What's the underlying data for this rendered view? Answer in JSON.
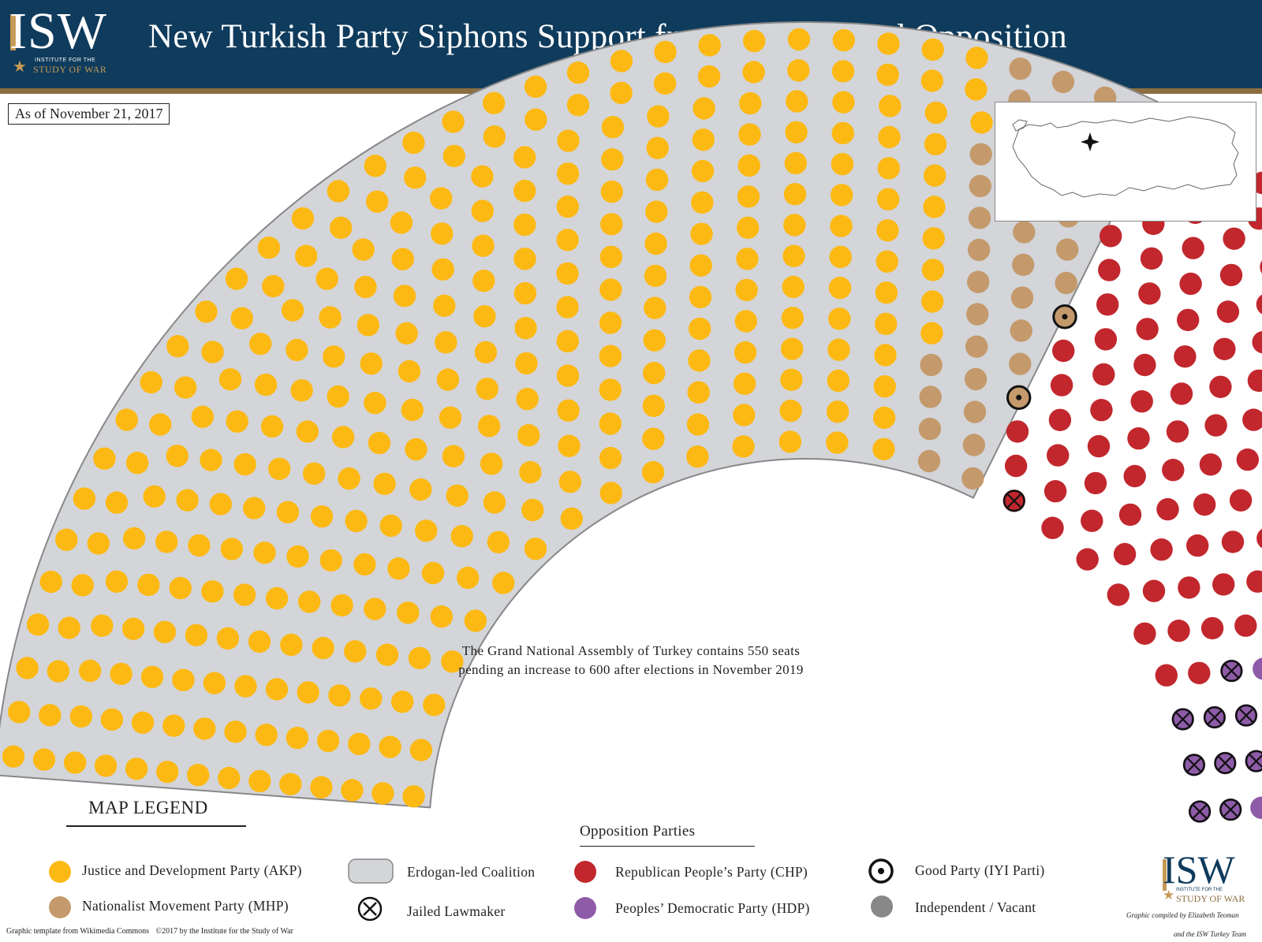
{
  "header": {
    "title": "New Turkish Party Siphons Support from Erdogan and Opposition",
    "logo": {
      "name": "ISW",
      "line1": "INSTITUTE FOR THE",
      "line2": "STUDY OF WAR"
    }
  },
  "date_label": "As of November 21, 2017",
  "note": {
    "line1": "The Grand National Assembly of Turkey contains 550 seats",
    "line2": "pending an increase to 600 after elections in November 2019"
  },
  "legend": {
    "title": "MAP LEGEND",
    "opposition_heading": "Opposition Parties",
    "items": {
      "akp": "Justice and Development Party (AKP)",
      "mhp": "Nationalist Movement Party (MHP)",
      "coalition": "Erdogan-led Coalition",
      "jailed": "Jailed Lawmaker",
      "chp": "Republican People’s Party (CHP)",
      "hdp": "Peoples’ Democratic Party (HDP)",
      "iyi": "Good Party (IYI Parti)",
      "independent": "Independent / Vacant"
    }
  },
  "footer": {
    "template_credit": "Graphic template from Wikimedia Commons",
    "copyright": "©2017 by the Institute for the Study of War",
    "compiled_1": "Graphic compiled by Elizabeth Teoman",
    "compiled_2": "and the ISW Turkey Team",
    "logo": {
      "name": "ISW",
      "line1": "INSTITUTE FOR THE",
      "line2": "STUDY OF WAR"
    }
  },
  "colors": {
    "akp": "#fdb913",
    "mhp": "#c49a6c",
    "chp": "#c1272d",
    "hdp": "#8e5ba8",
    "iyi": "#c49a6c",
    "independent": "#888888",
    "coalition_fill": "#d3d5d9",
    "header": "#0f3b5c",
    "accent": "#8c6d3f"
  },
  "chart_data": {
    "type": "parliament",
    "total_seats": 550,
    "parties": [
      {
        "key": "akp",
        "seats": 316
      },
      {
        "key": "mhp",
        "seats": 35
      },
      {
        "key": "iyi",
        "seats": 5
      },
      {
        "key": "chp",
        "seats": 131,
        "jailed": 1
      },
      {
        "key": "hdp",
        "seats": 54,
        "jailed": 9
      },
      {
        "key": "independent",
        "seats": 9
      }
    ]
  }
}
